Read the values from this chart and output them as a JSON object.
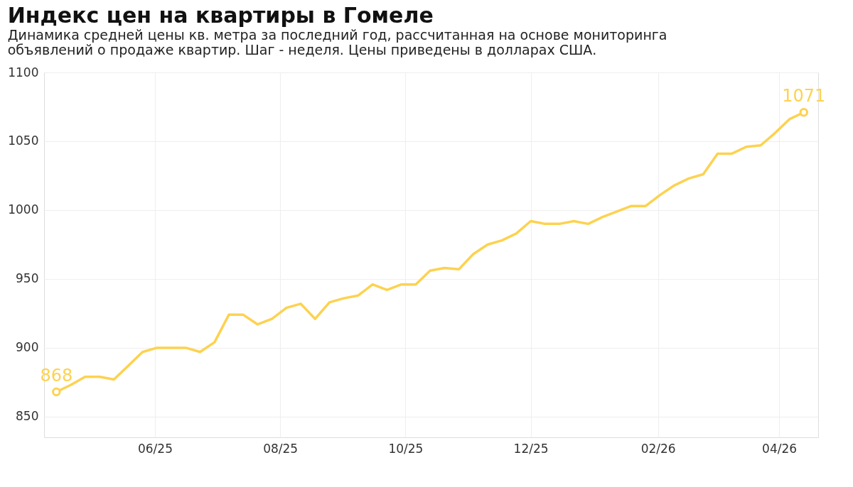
{
  "chart_data": {
    "type": "line",
    "title": "Индекс цен на квартиры в Гомеле",
    "subtitle": "Динамика средней цены кв. метра за последний год, рассчитанная на основе мониторинга\nобъявлений о продаже квартир. Шаг - неделя. Цены приведены в долларах США.",
    "x": [
      "2025-04-14",
      "2025-04-21",
      "2025-04-28",
      "2025-05-05",
      "2025-05-12",
      "2025-05-19",
      "2025-05-26",
      "2025-06-02",
      "2025-06-09",
      "2025-06-16",
      "2025-06-23",
      "2025-06-30",
      "2025-07-07",
      "2025-07-14",
      "2025-07-21",
      "2025-07-28",
      "2025-08-04",
      "2025-08-11",
      "2025-08-18",
      "2025-08-25",
      "2025-09-01",
      "2025-09-08",
      "2025-09-15",
      "2025-09-22",
      "2025-09-29",
      "2025-10-06",
      "2025-10-13",
      "2025-10-20",
      "2025-10-27",
      "2025-11-03",
      "2025-11-10",
      "2025-11-17",
      "2025-11-24",
      "2025-12-01",
      "2025-12-08",
      "2025-12-15",
      "2025-12-22",
      "2025-12-29",
      "2026-01-05",
      "2026-01-12",
      "2026-01-19",
      "2026-01-26",
      "2026-02-02",
      "2026-02-09",
      "2026-02-16",
      "2026-02-23",
      "2026-03-02",
      "2026-03-09",
      "2026-03-16",
      "2026-03-23",
      "2026-03-30",
      "2026-04-06",
      "2026-04-13"
    ],
    "series": [
      {
        "color": "#fdd250",
        "values": [
          868,
          873,
          879,
          879,
          877,
          887,
          897,
          900,
          900,
          900,
          897,
          904,
          924,
          924,
          917,
          921,
          929,
          932,
          921,
          933,
          936,
          938,
          946,
          942,
          946,
          946,
          956,
          958,
          957,
          968,
          975,
          978,
          983,
          992,
          990,
          990,
          992,
          990,
          995,
          999,
          1003,
          1003,
          1011,
          1018,
          1023,
          1026,
          1041,
          1041,
          1046,
          1047,
          1056,
          1066,
          1071
        ],
        "value_labels": [
          "868",
          null,
          null,
          null,
          null,
          null,
          null,
          null,
          null,
          null,
          null,
          null,
          null,
          null,
          null,
          null,
          null,
          null,
          null,
          null,
          null,
          null,
          null,
          null,
          null,
          null,
          null,
          null,
          null,
          null,
          null,
          null,
          null,
          null,
          null,
          null,
          null,
          null,
          null,
          null,
          null,
          null,
          null,
          null,
          null,
          null,
          null,
          null,
          null,
          null,
          null,
          null,
          "1071"
        ]
      }
    ],
    "xlim": [
      "2025-04-08",
      "2026-04-20"
    ],
    "xticks": [
      {
        "value": "2025-06-01",
        "label": "06/25"
      },
      {
        "value": "2025-08-01",
        "label": "08/25"
      },
      {
        "value": "2025-10-01",
        "label": "10/25"
      },
      {
        "value": "2025-12-01",
        "label": "12/25"
      },
      {
        "value": "2026-02-01",
        "label": "02/26"
      },
      {
        "value": "2026-04-01",
        "label": "04/26"
      }
    ],
    "ylim": [
      835,
      1100
    ],
    "yticks": [
      850,
      900,
      950,
      1000,
      1050,
      1100
    ],
    "grid": true,
    "line_style": "solid"
  }
}
